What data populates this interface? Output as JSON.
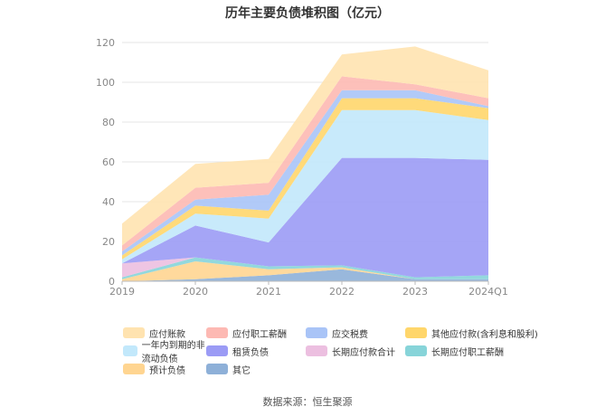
{
  "title": "历年主要负债堆积图（亿元）",
  "source": "数据来源：恒生聚源",
  "chart_data": {
    "type": "area",
    "stacked": true,
    "x": [
      "2019",
      "2020",
      "2021",
      "2022",
      "2023",
      "2024Q1"
    ],
    "ylim": [
      0,
      120
    ],
    "yticks": [
      0,
      20,
      40,
      60,
      80,
      100,
      120
    ],
    "grid": true,
    "legend_position": "bottom",
    "series": [
      {
        "name": "其它",
        "color": "#8eb0d8",
        "values": [
          0,
          1,
          3,
          6,
          1,
          1
        ]
      },
      {
        "name": "预计负债",
        "color": "#ffd591",
        "values": [
          1,
          9,
          3,
          1,
          0,
          0
        ]
      },
      {
        "name": "长期应付职工薪酬",
        "color": "#87d4d9",
        "values": [
          1,
          2,
          1.5,
          1,
          1,
          2
        ]
      },
      {
        "name": "长期应付款合计",
        "color": "#ecbfe0",
        "values": [
          7,
          0,
          0,
          0,
          0,
          0
        ]
      },
      {
        "name": "租赁负债",
        "color": "#9b9bf5",
        "values": [
          0,
          16,
          12,
          54,
          60,
          58
        ]
      },
      {
        "name": "一年内到期的非流动负债",
        "color": "#c2e8fb",
        "values": [
          2,
          6,
          12,
          24,
          24,
          20
        ]
      },
      {
        "name": "其他应付款(含利息和股利)",
        "color": "#ffd66b",
        "values": [
          2,
          4,
          4,
          6,
          6,
          6
        ]
      },
      {
        "name": "应交税费",
        "color": "#a9c4f7",
        "values": [
          2,
          3,
          8,
          4,
          4,
          1
        ]
      },
      {
        "name": "应付职工薪酬",
        "color": "#fdb9b3",
        "values": [
          3,
          6,
          6,
          7,
          3,
          4
        ]
      },
      {
        "name": "应付账款",
        "color": "#ffe3b0",
        "values": [
          11,
          12,
          12,
          11,
          19,
          14
        ]
      }
    ]
  },
  "legend": [
    [
      "应付账款",
      "应付职工薪酬",
      "应交税费",
      "其他应付款(含利息和股利)"
    ],
    [
      "一年内到期的非流动负债",
      "租赁负债",
      "长期应付款合计",
      "长期应付职工薪酬"
    ],
    [
      "预计负债",
      "其它"
    ]
  ]
}
